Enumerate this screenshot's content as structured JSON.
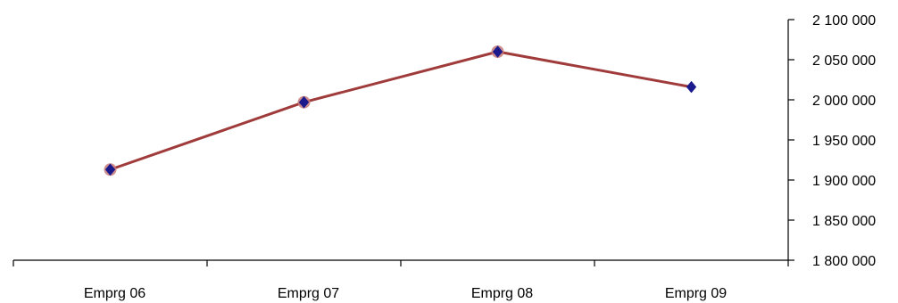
{
  "chart_data": {
    "type": "line",
    "title": "",
    "xlabel": "",
    "ylabel": "",
    "categories": [
      "Emprg 06",
      "Emprg 07",
      "Emprg 08",
      "Emprg 09"
    ],
    "series": [
      {
        "values": [
          1913000,
          1997000,
          2060000,
          2016000
        ],
        "line_color": "#a03b3b",
        "marker_color": "#1a1a8c",
        "marker_halo_color": "#c77a7a"
      }
    ],
    "ylim": [
      1800000,
      2100000
    ],
    "yticks": [
      1800000,
      1850000,
      1900000,
      1950000,
      2000000,
      2050000,
      2100000
    ],
    "ytick_labels": [
      "1 800 000",
      "1 850 000",
      "1 900 000",
      "1 950 000",
      "2 000 000",
      "2 050 000",
      "2 100 000"
    ],
    "y_axis_side": "right",
    "grid": false,
    "legend": "none"
  }
}
